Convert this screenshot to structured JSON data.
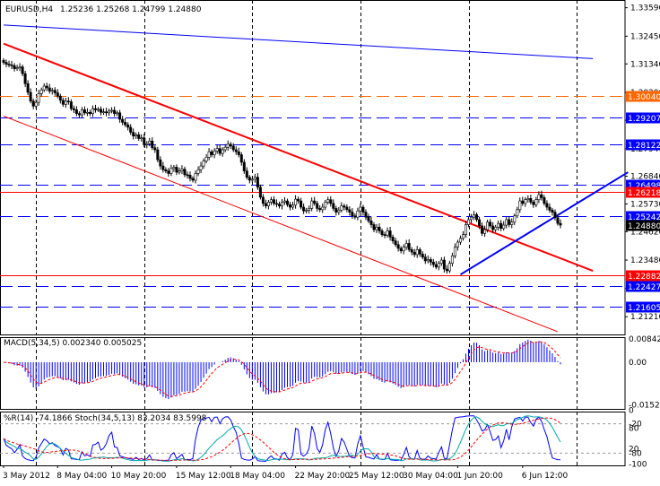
{
  "chart_data": {
    "type": "line",
    "chart_kind": "candlestick",
    "header": {
      "symbol": "EURUSD,H4",
      "ohlc": "1.25236 1.25268 1.24799 1.24880"
    },
    "colors": {
      "frame": "#000000",
      "grid": "#000000",
      "candle": "#000000",
      "red_level": "#ff0000",
      "blue_level": "#0000ff",
      "orange_level": "#ff6600",
      "trend_red": "#ff0000",
      "trend_blue": "#0000ff",
      "macd_hist": "#0000ff",
      "macd_signal": "#ff0000",
      "wpr": "#0000ff",
      "stoch_main": "#00aaaa",
      "stoch_signal": "#ff0000",
      "label_red_bg": "#ff0000",
      "label_blue_bg": "#0000ff",
      "label_orange_bg": "#ff6600",
      "label_text": "#ffffff"
    },
    "price_axis": {
      "ylim": [
        1.205,
        1.339
      ],
      "ticks": [
        "1.33590",
        "1.32450",
        "1.31340",
        "1.30200",
        "1.29080",
        "1.27940",
        "1.26840",
        "1.25730",
        "1.24620",
        "1.23480",
        "1.22340",
        "1.21210"
      ]
    },
    "horizontal_levels": [
      {
        "value": 1.3004,
        "label": "1.30040",
        "color": "orange",
        "style": "dashed"
      },
      {
        "value": 1.29207,
        "label": "1.29207",
        "color": "blue",
        "style": "dashed"
      },
      {
        "value": 1.28122,
        "label": "1.28122",
        "color": "blue",
        "style": "dashed"
      },
      {
        "value": 1.26498,
        "label": "1.26498",
        "color": "blue",
        "style": "dashed"
      },
      {
        "value": 1.26218,
        "label": "1.26218",
        "color": "red",
        "style": "solid"
      },
      {
        "value": 1.25242,
        "label": "1.25242",
        "color": "blue",
        "style": "dashed"
      },
      {
        "value": 1.2488,
        "label": "1.24880",
        "color": "black",
        "style": "none"
      },
      {
        "value": 1.22882,
        "label": "1.22882",
        "color": "red",
        "style": "solid"
      },
      {
        "value": 1.22427,
        "label": "1.22427",
        "color": "blue",
        "style": "dashed"
      },
      {
        "value": 1.21605,
        "label": "1.21605",
        "color": "blue",
        "style": "dashed"
      }
    ],
    "trendlines": [
      {
        "color": "blue",
        "width": 1,
        "from": [
          0,
          1.329
        ],
        "to": [
          218,
          1.3155
        ]
      },
      {
        "color": "red",
        "width": 2,
        "from": [
          0,
          1.3215
        ],
        "to": [
          218,
          1.2305
        ]
      },
      {
        "color": "red",
        "width": 1,
        "from": [
          0,
          1.2925
        ],
        "to": [
          205,
          1.2061
        ]
      },
      {
        "color": "blue",
        "width": 2,
        "from": [
          169,
          1.229
        ],
        "to": [
          231,
          1.27
        ]
      }
    ],
    "x_axis": {
      "labels": [
        "3 May 2012",
        "8 May 04:00",
        "10 May 20:00",
        "15 May 12:00",
        "18 May 04:00",
        "22 May 20:00",
        "25 May 12:00",
        "30 May 04:00",
        "1 Jun 20:00",
        "6 Jun 12:00"
      ],
      "label_bars": [
        0,
        20,
        40,
        64,
        84,
        108,
        128,
        148,
        168,
        192
      ],
      "separators": [
        12,
        52,
        92,
        132,
        172,
        212
      ]
    },
    "close_series": [
      1.314,
      1.3133,
      1.313,
      1.3127,
      1.3115,
      1.3118,
      1.3122,
      1.3095,
      1.3055,
      1.302,
      1.2985,
      1.2965,
      1.298,
      1.3015,
      1.303,
      1.3045,
      1.3038,
      1.3025,
      1.3028,
      1.3018,
      1.3005,
      1.2988,
      1.2972,
      1.2985,
      1.2982,
      1.2955,
      1.295,
      1.2935,
      1.293,
      1.295,
      1.2938,
      1.294,
      1.2935,
      1.2955,
      1.295,
      1.2952,
      1.294,
      1.2942,
      1.2938,
      1.2945,
      1.2948,
      1.2935,
      1.2938,
      1.2912,
      1.29,
      1.289,
      1.288,
      1.286,
      1.2845,
      1.285,
      1.2835,
      1.2838,
      1.281,
      1.2815,
      1.2825,
      1.2798,
      1.279,
      1.275,
      1.2725,
      1.271,
      1.2705,
      1.2695,
      1.2715,
      1.272,
      1.27,
      1.2705,
      1.2712,
      1.269,
      1.2688,
      1.2675,
      1.2668,
      1.2695,
      1.271,
      1.2725,
      1.2745,
      1.276,
      1.2782,
      1.277,
      1.2785,
      1.2795,
      1.2775,
      1.279,
      1.28,
      1.2812,
      1.2805,
      1.279,
      1.2782,
      1.277,
      1.274,
      1.2705,
      1.268,
      1.2668,
      1.2672,
      1.268,
      1.264,
      1.26,
      1.2575,
      1.2565,
      1.258,
      1.259,
      1.2575,
      1.2572,
      1.2565,
      1.258,
      1.2585,
      1.257,
      1.256,
      1.2568,
      1.2592,
      1.2585,
      1.256,
      1.2545,
      1.2548,
      1.2555,
      1.2585,
      1.2575,
      1.2555,
      1.255,
      1.256,
      1.258,
      1.259,
      1.2575,
      1.2555,
      1.254,
      1.2548,
      1.2565,
      1.256,
      1.255,
      1.254,
      1.2525,
      1.252,
      1.2545,
      1.256,
      1.254,
      1.252,
      1.2505,
      1.249,
      1.247,
      1.248,
      1.2465,
      1.245,
      1.2448,
      1.2465,
      1.244,
      1.2425,
      1.241,
      1.2395,
      1.2385,
      1.24,
      1.2415,
      1.239,
      1.238,
      1.237,
      1.239,
      1.2372,
      1.236,
      1.2345,
      1.235,
      1.234,
      1.233,
      1.232,
      1.2335,
      1.2348,
      1.2312,
      1.2305,
      1.2335,
      1.2365,
      1.24,
      1.242,
      1.2435,
      1.245,
      1.249,
      1.251,
      1.252,
      1.253,
      1.251,
      1.2485,
      1.2455,
      1.247,
      1.25,
      1.2485,
      1.247,
      1.248,
      1.2495,
      1.2475,
      1.2488,
      1.251,
      1.249,
      1.25,
      1.2525,
      1.255,
      1.2585,
      1.2575,
      1.259,
      1.2595,
      1.258,
      1.257,
      1.259,
      1.261,
      1.2598,
      1.2575,
      1.256,
      1.2548,
      1.254,
      1.2518,
      1.2495,
      1.2488
    ],
    "macd": {
      "label": "MACD(5,34,5) 0.002340 0.005025",
      "ylim": [
        -0.01675,
        0.009
      ],
      "ticks": [
        "0.008427",
        "0.00",
        "-0.01524"
      ]
    },
    "oscillators": {
      "label": "%R(14) -74.1866   Stoch(34,5,13) 83.2034 83.5998",
      "ylim": [
        -105,
        5
      ],
      "ticks": [
        "0",
        "-20",
        "80",
        "20",
        "-80",
        "-100"
      ],
      "levels": [
        -20,
        -80
      ]
    }
  }
}
